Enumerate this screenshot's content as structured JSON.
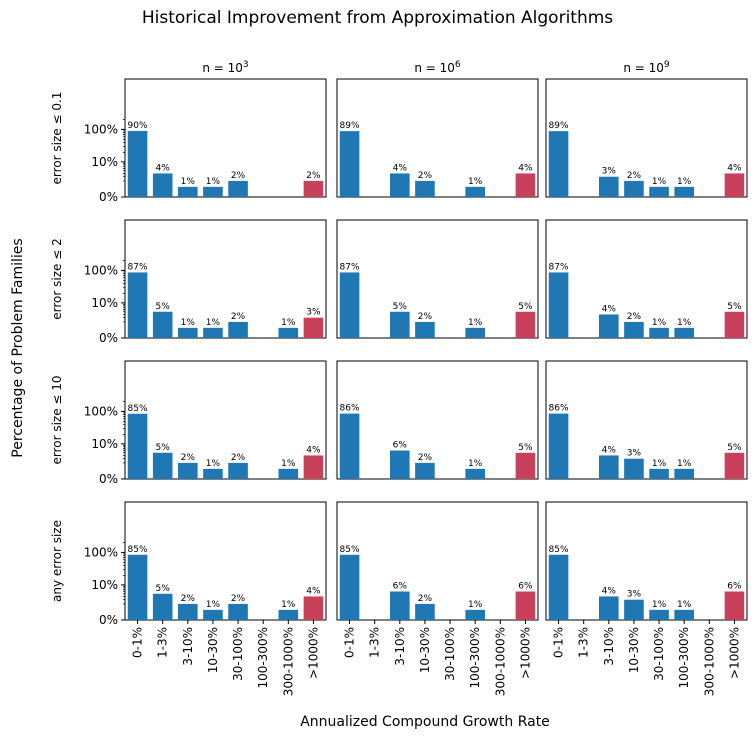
{
  "figure": {
    "title": "Historical Improvement from Approximation Algorithms",
    "ylabel": "Percentage of Problem Families",
    "xlabel": "Annualized Compound Growth Rate"
  },
  "colors": {
    "normal": "#1f77b4",
    "highlight": "#c9405a"
  },
  "chart_data": {
    "type": "bar",
    "layout": "small-multiples grid (4 rows x 3 columns)",
    "y_scale": "symlog",
    "y_ticks": [
      "0%",
      "10%",
      "100%"
    ],
    "categories": [
      "0-1%",
      "1-3%",
      "3-10%",
      "10-30%",
      "30-100%",
      "100-300%",
      "300-1000%",
      ">1000%"
    ],
    "highlight_category": ">1000%",
    "columns": [
      {
        "base": "n = 10",
        "exp": "3"
      },
      {
        "base": "n = 10",
        "exp": "6"
      },
      {
        "base": "n = 10",
        "exp": "9"
      }
    ],
    "rows": [
      {
        "label": "error size ≤ 0.1",
        "panels": [
          [
            90,
            4,
            1,
            1,
            2,
            0,
            0,
            2
          ],
          [
            89,
            0,
            4,
            2,
            0,
            1,
            0,
            4
          ],
          [
            89,
            0,
            3,
            2,
            1,
            1,
            0,
            4
          ]
        ]
      },
      {
        "label": "error size ≤ 2",
        "panels": [
          [
            87,
            5,
            1,
            1,
            2,
            0,
            1,
            3
          ],
          [
            87,
            0,
            5,
            2,
            0,
            1,
            0,
            5
          ],
          [
            87,
            0,
            4,
            2,
            1,
            1,
            0,
            5
          ]
        ]
      },
      {
        "label": "error size ≤ 10",
        "panels": [
          [
            85,
            5,
            2,
            1,
            2,
            0,
            1,
            4
          ],
          [
            86,
            0,
            6,
            2,
            0,
            1,
            0,
            5
          ],
          [
            86,
            0,
            4,
            3,
            1,
            1,
            0,
            5
          ]
        ]
      },
      {
        "label": "any error size",
        "panels": [
          [
            85,
            5,
            2,
            1,
            2,
            0,
            1,
            4
          ],
          [
            85,
            0,
            6,
            2,
            0,
            1,
            0,
            6
          ],
          [
            85,
            0,
            4,
            3,
            1,
            1,
            0,
            6
          ]
        ]
      }
    ]
  }
}
